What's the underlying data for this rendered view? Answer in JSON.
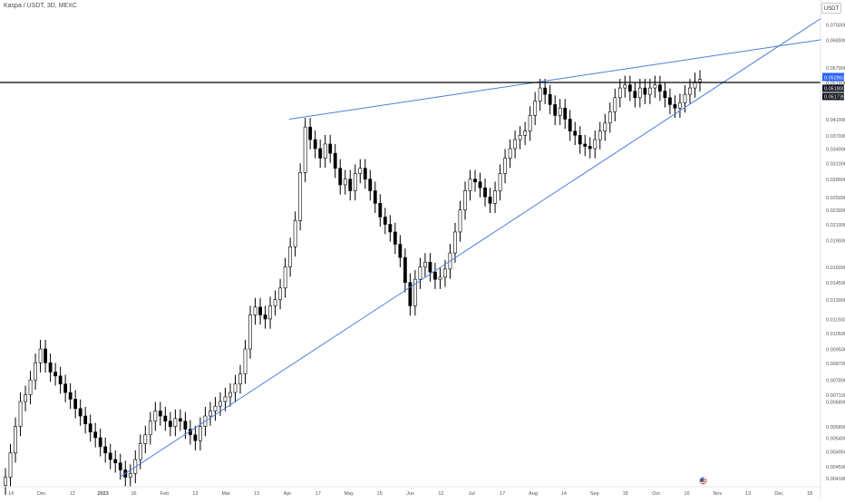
{
  "header": {
    "symbol": "Kaspa / USDT, 3D, MEXC",
    "currency_button": "USDT"
  },
  "colors": {
    "up_candle": "#000000",
    "down_candle": "#000000",
    "trendline": "#4a7fdc",
    "resistance_line": "#000000",
    "price_label_bg": "#2962ff",
    "price_axis_text": "#555555"
  },
  "price_axis": {
    "ticks": [
      "0.075000",
      "0.068000",
      "0.057000",
      "0.051800",
      "0.041000",
      "0.037000",
      "0.034000",
      "0.031000",
      "0.028000",
      "0.025000",
      "0.023000",
      "0.021000",
      "0.019000",
      "0.016000",
      "0.014500",
      "0.013000",
      "0.011500",
      "0.010500",
      "0.009500",
      "0.008700",
      "0.007800",
      "0.007100",
      "0.006800",
      "0.005800",
      "0.005400",
      "0.004950",
      "0.004500",
      "0.004180"
    ],
    "current_price": "0.052863",
    "secondary_labels": [
      "0.051800",
      "0.051739"
    ]
  },
  "time_axis": {
    "ticks": [
      "14",
      "Dec",
      "12",
      "2023",
      "16",
      "Feb",
      "13",
      "Mar",
      "13",
      "Apr",
      "17",
      "May",
      "15",
      "Jun",
      "12",
      "Jul",
      "17",
      "Aug",
      "14",
      "Sep",
      "18",
      "Oct",
      "16",
      "Nov",
      "13",
      "Dec",
      "18"
    ]
  },
  "event_icon": "us-flag-event-icon",
  "chart_data": {
    "type": "candlestick",
    "title": "Kaspa / USDT, 3D, MEXC",
    "ylabel": "USDT",
    "y_scale": "log",
    "ylim": [
      0.004,
      0.078
    ],
    "series": [
      {
        "name": "close",
        "values": [
          0.0042,
          0.0049,
          0.0058,
          0.0068,
          0.0071,
          0.0078,
          0.0087,
          0.0095,
          0.0087,
          0.0082,
          0.008,
          0.0076,
          0.0072,
          0.0069,
          0.0065,
          0.0062,
          0.0059,
          0.0056,
          0.0054,
          0.0051,
          0.0049,
          0.0047,
          0.0046,
          0.0044,
          0.0042,
          0.0043,
          0.0047,
          0.0052,
          0.0055,
          0.006,
          0.0064,
          0.0062,
          0.006,
          0.0058,
          0.0061,
          0.006,
          0.0057,
          0.0055,
          0.0053,
          0.0058,
          0.0062,
          0.0064,
          0.0066,
          0.0068,
          0.007,
          0.0072,
          0.0076,
          0.0081,
          0.0095,
          0.0118,
          0.0124,
          0.0118,
          0.0115,
          0.0125,
          0.013,
          0.014,
          0.016,
          0.0182,
          0.0215,
          0.0292,
          0.039,
          0.036,
          0.034,
          0.032,
          0.035,
          0.033,
          0.03,
          0.027,
          0.028,
          0.026,
          0.029,
          0.03,
          0.028,
          0.026,
          0.024,
          0.022,
          0.021,
          0.02,
          0.0185,
          0.017,
          0.0145,
          0.0125,
          0.0148,
          0.016,
          0.0165,
          0.0155,
          0.0148,
          0.015,
          0.0158,
          0.0175,
          0.02,
          0.023,
          0.026,
          0.028,
          0.0275,
          0.0265,
          0.025,
          0.024,
          0.026,
          0.029,
          0.032,
          0.034,
          0.036,
          0.037,
          0.038,
          0.042,
          0.046,
          0.05,
          0.048,
          0.045,
          0.042,
          0.044,
          0.041,
          0.038,
          0.037,
          0.035,
          0.0345,
          0.034,
          0.036,
          0.038,
          0.04,
          0.043,
          0.047,
          0.05,
          0.051,
          0.049,
          0.047,
          0.05,
          0.048,
          0.05,
          0.051,
          0.049,
          0.047,
          0.045,
          0.044,
          0.0455,
          0.048,
          0.05,
          0.052,
          0.0528
        ]
      }
    ],
    "trendlines": [
      {
        "name": "lower-ascending-support",
        "from": [
          0.0042,
          0.0042
        ],
        "to": [
          0.078,
          0.078
        ]
      },
      {
        "name": "upper-rising-resistance",
        "from": [
          0.041,
          0.041
        ],
        "to": [
          0.068,
          0.068
        ]
      },
      {
        "name": "horizontal-resistance",
        "value": 0.0518
      }
    ],
    "grid": false
  }
}
